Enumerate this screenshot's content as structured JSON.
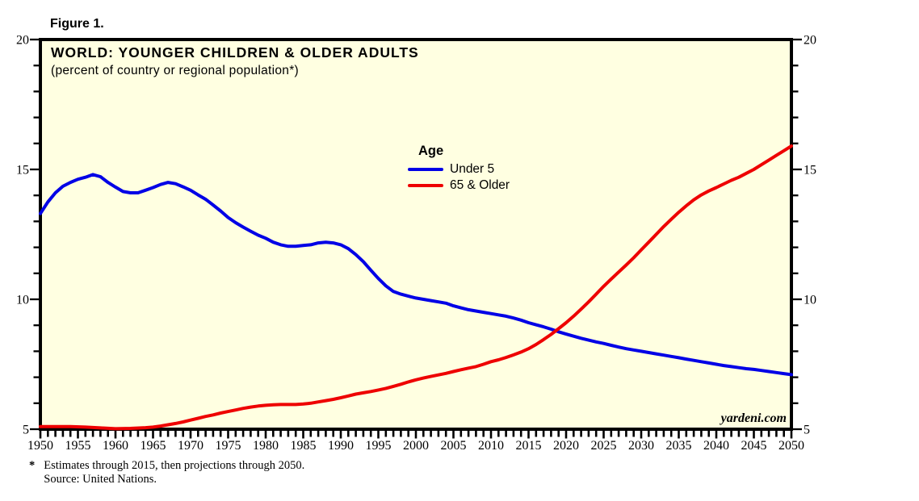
{
  "figure_label": "Figure 1.",
  "chart": {
    "title": "WORLD: YOUNGER CHILDREN & OLDER ADULTS",
    "subtitle": "(percent of country or regional population*)",
    "watermark": "yardeni.com",
    "plot_bg_color": "#FFFFE1",
    "border_color": "#000000",
    "legend": {
      "title": "Age",
      "entries": [
        {
          "label": "Under 5",
          "color": "#0000E6"
        },
        {
          "label": "65 & Older",
          "color": "#EE0000"
        }
      ]
    }
  },
  "footnote": {
    "marker": "*",
    "line1": "Estimates through 2015, then projections through 2050.",
    "line2": "Source: United Nations."
  },
  "chart_data": {
    "type": "line",
    "title": "WORLD: YOUNGER CHILDREN & OLDER ADULTS",
    "subtitle": "(percent of country or regional population*)",
    "xlabel": "",
    "ylabel": "",
    "grid": false,
    "legend_title": "Age",
    "legend_position": "inside-top-center",
    "x_axis": {
      "min": 1950,
      "max": 2050,
      "minor_step": 1,
      "major_step": 5,
      "tick_labels": [
        "1950",
        "1955",
        "1960",
        "1965",
        "1970",
        "1975",
        "1980",
        "1985",
        "1990",
        "1995",
        "2000",
        "2005",
        "2010",
        "2015",
        "2020",
        "2025",
        "2030",
        "2035",
        "2040",
        "2045",
        "2050"
      ]
    },
    "y_axis": {
      "min": 5,
      "max": 20,
      "minor_step": 1,
      "major_step": 5,
      "tick_labels": [
        "5",
        "10",
        "15",
        "20"
      ],
      "mirrored_right": true
    },
    "series": [
      {
        "name": "Under 5",
        "color": "#0000E6",
        "points": [
          [
            1950,
            13.3
          ],
          [
            1951,
            13.75
          ],
          [
            1952,
            14.1
          ],
          [
            1953,
            14.35
          ],
          [
            1954,
            14.5
          ],
          [
            1955,
            14.62
          ],
          [
            1956,
            14.7
          ],
          [
            1957,
            14.8
          ],
          [
            1958,
            14.72
          ],
          [
            1959,
            14.5
          ],
          [
            1960,
            14.32
          ],
          [
            1961,
            14.15
          ],
          [
            1962,
            14.1
          ],
          [
            1963,
            14.1
          ],
          [
            1964,
            14.2
          ],
          [
            1965,
            14.3
          ],
          [
            1966,
            14.42
          ],
          [
            1967,
            14.5
          ],
          [
            1968,
            14.45
          ],
          [
            1969,
            14.33
          ],
          [
            1970,
            14.2
          ],
          [
            1971,
            14.02
          ],
          [
            1972,
            13.85
          ],
          [
            1973,
            13.63
          ],
          [
            1974,
            13.4
          ],
          [
            1975,
            13.15
          ],
          [
            1976,
            12.95
          ],
          [
            1977,
            12.78
          ],
          [
            1978,
            12.62
          ],
          [
            1979,
            12.47
          ],
          [
            1980,
            12.35
          ],
          [
            1981,
            12.2
          ],
          [
            1982,
            12.1
          ],
          [
            1983,
            12.04
          ],
          [
            1984,
            12.04
          ],
          [
            1985,
            12.07
          ],
          [
            1986,
            12.1
          ],
          [
            1987,
            12.17
          ],
          [
            1988,
            12.2
          ],
          [
            1989,
            12.17
          ],
          [
            1990,
            12.1
          ],
          [
            1991,
            11.95
          ],
          [
            1992,
            11.72
          ],
          [
            1993,
            11.45
          ],
          [
            1994,
            11.12
          ],
          [
            1995,
            10.8
          ],
          [
            1996,
            10.52
          ],
          [
            1997,
            10.3
          ],
          [
            1998,
            10.2
          ],
          [
            1999,
            10.12
          ],
          [
            2000,
            10.05
          ],
          [
            2001,
            10.0
          ],
          [
            2002,
            9.95
          ],
          [
            2003,
            9.9
          ],
          [
            2004,
            9.85
          ],
          [
            2005,
            9.75
          ],
          [
            2006,
            9.67
          ],
          [
            2007,
            9.6
          ],
          [
            2008,
            9.55
          ],
          [
            2009,
            9.5
          ],
          [
            2010,
            9.45
          ],
          [
            2011,
            9.4
          ],
          [
            2012,
            9.35
          ],
          [
            2013,
            9.28
          ],
          [
            2014,
            9.2
          ],
          [
            2015,
            9.1
          ],
          [
            2016,
            9.02
          ],
          [
            2017,
            8.94
          ],
          [
            2018,
            8.85
          ],
          [
            2019,
            8.75
          ],
          [
            2020,
            8.66
          ],
          [
            2021,
            8.58
          ],
          [
            2022,
            8.5
          ],
          [
            2023,
            8.43
          ],
          [
            2024,
            8.36
          ],
          [
            2025,
            8.3
          ],
          [
            2026,
            8.23
          ],
          [
            2027,
            8.16
          ],
          [
            2028,
            8.1
          ],
          [
            2029,
            8.05
          ],
          [
            2030,
            8.0
          ],
          [
            2031,
            7.95
          ],
          [
            2032,
            7.9
          ],
          [
            2033,
            7.85
          ],
          [
            2034,
            7.8
          ],
          [
            2035,
            7.75
          ],
          [
            2036,
            7.7
          ],
          [
            2037,
            7.65
          ],
          [
            2038,
            7.6
          ],
          [
            2039,
            7.55
          ],
          [
            2040,
            7.5
          ],
          [
            2041,
            7.45
          ],
          [
            2042,
            7.41
          ],
          [
            2043,
            7.37
          ],
          [
            2044,
            7.33
          ],
          [
            2045,
            7.3
          ],
          [
            2046,
            7.26
          ],
          [
            2047,
            7.22
          ],
          [
            2048,
            7.18
          ],
          [
            2049,
            7.14
          ],
          [
            2050,
            7.1
          ]
        ]
      },
      {
        "name": "65 & Older",
        "color": "#EE0000",
        "points": [
          [
            1950,
            5.1
          ],
          [
            1952,
            5.1
          ],
          [
            1954,
            5.1
          ],
          [
            1956,
            5.08
          ],
          [
            1958,
            5.05
          ],
          [
            1960,
            5.02
          ],
          [
            1962,
            5.03
          ],
          [
            1964,
            5.06
          ],
          [
            1965,
            5.08
          ],
          [
            1966,
            5.12
          ],
          [
            1967,
            5.17
          ],
          [
            1968,
            5.22
          ],
          [
            1969,
            5.28
          ],
          [
            1970,
            5.35
          ],
          [
            1971,
            5.42
          ],
          [
            1972,
            5.49
          ],
          [
            1973,
            5.55
          ],
          [
            1974,
            5.62
          ],
          [
            1975,
            5.68
          ],
          [
            1976,
            5.74
          ],
          [
            1977,
            5.8
          ],
          [
            1978,
            5.85
          ],
          [
            1979,
            5.89
          ],
          [
            1980,
            5.92
          ],
          [
            1981,
            5.94
          ],
          [
            1982,
            5.95
          ],
          [
            1983,
            5.95
          ],
          [
            1984,
            5.95
          ],
          [
            1985,
            5.97
          ],
          [
            1986,
            6.0
          ],
          [
            1987,
            6.05
          ],
          [
            1988,
            6.1
          ],
          [
            1989,
            6.15
          ],
          [
            1990,
            6.21
          ],
          [
            1991,
            6.28
          ],
          [
            1992,
            6.35
          ],
          [
            1993,
            6.4
          ],
          [
            1994,
            6.45
          ],
          [
            1995,
            6.51
          ],
          [
            1996,
            6.57
          ],
          [
            1997,
            6.65
          ],
          [
            1998,
            6.73
          ],
          [
            1999,
            6.82
          ],
          [
            2000,
            6.9
          ],
          [
            2001,
            6.97
          ],
          [
            2002,
            7.03
          ],
          [
            2003,
            7.09
          ],
          [
            2004,
            7.15
          ],
          [
            2005,
            7.22
          ],
          [
            2006,
            7.29
          ],
          [
            2007,
            7.35
          ],
          [
            2008,
            7.41
          ],
          [
            2009,
            7.5
          ],
          [
            2010,
            7.6
          ],
          [
            2011,
            7.67
          ],
          [
            2012,
            7.76
          ],
          [
            2013,
            7.86
          ],
          [
            2014,
            7.97
          ],
          [
            2015,
            8.1
          ],
          [
            2016,
            8.26
          ],
          [
            2017,
            8.45
          ],
          [
            2018,
            8.65
          ],
          [
            2019,
            8.87
          ],
          [
            2020,
            9.1
          ],
          [
            2021,
            9.35
          ],
          [
            2022,
            9.62
          ],
          [
            2023,
            9.9
          ],
          [
            2024,
            10.2
          ],
          [
            2025,
            10.5
          ],
          [
            2026,
            10.78
          ],
          [
            2027,
            11.05
          ],
          [
            2028,
            11.32
          ],
          [
            2029,
            11.6
          ],
          [
            2030,
            11.9
          ],
          [
            2031,
            12.2
          ],
          [
            2032,
            12.5
          ],
          [
            2033,
            12.8
          ],
          [
            2034,
            13.08
          ],
          [
            2035,
            13.35
          ],
          [
            2036,
            13.6
          ],
          [
            2037,
            13.83
          ],
          [
            2038,
            14.02
          ],
          [
            2039,
            14.17
          ],
          [
            2040,
            14.3
          ],
          [
            2041,
            14.44
          ],
          [
            2042,
            14.58
          ],
          [
            2043,
            14.7
          ],
          [
            2044,
            14.85
          ],
          [
            2045,
            15.0
          ],
          [
            2046,
            15.18
          ],
          [
            2047,
            15.36
          ],
          [
            2048,
            15.54
          ],
          [
            2049,
            15.72
          ],
          [
            2050,
            15.9
          ]
        ]
      }
    ]
  }
}
